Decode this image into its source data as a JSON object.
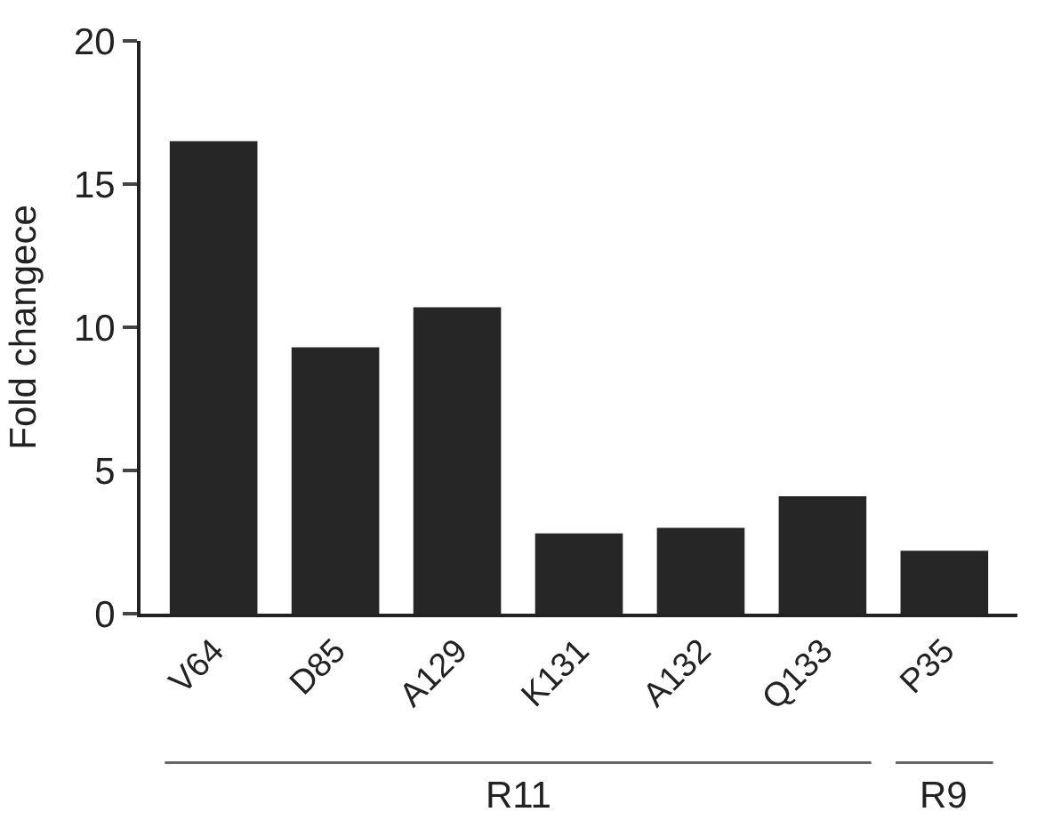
{
  "chart_data": {
    "type": "bar",
    "ylabel": "Fold changece",
    "categories": [
      "V64",
      "D85",
      "A129",
      "K131",
      "A132",
      "Q133",
      "P35"
    ],
    "values": [
      16.5,
      9.3,
      10.7,
      2.8,
      3.0,
      4.1,
      2.2
    ],
    "color": "#262626",
    "ylim": [
      0,
      20
    ],
    "yticks": [
      0,
      5,
      10,
      15,
      20
    ],
    "annotations": [
      "R11",
      "R9"
    ]
  }
}
